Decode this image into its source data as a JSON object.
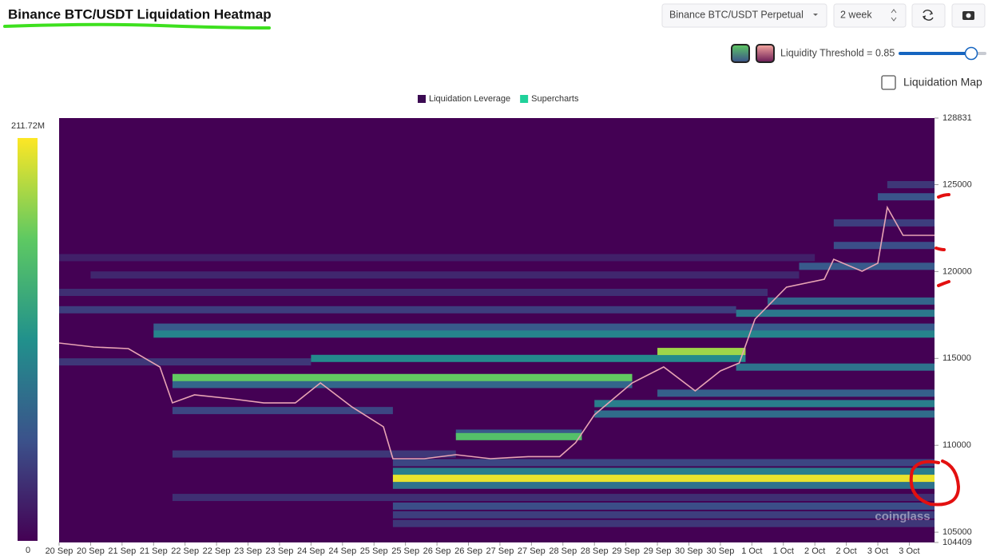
{
  "header": {
    "title": "Binance BTC/USDT Liquidation Heatmap"
  },
  "controls": {
    "pair": "Binance BTC/USDT Perpetual",
    "range": "2 week",
    "threshold_label": "Liquidity Threshold = 0.85",
    "map_toggle": "Liquidation Map"
  },
  "chart_data": {
    "type": "heatmap",
    "legend": [
      {
        "name": "Liquidation Leverage",
        "color": "#3b0a52"
      },
      {
        "name": "Supercharts",
        "color": "#1fd19a"
      }
    ],
    "colorscale": [
      "#440154",
      "#3b528b",
      "#21918c",
      "#5ec962",
      "#fde725"
    ],
    "colorbar": {
      "max": {
        "value": 211720000,
        "label": "211.72M"
      },
      "min": 0
    },
    "watermark": "coinglass",
    "ylim": [
      104409,
      128831
    ],
    "yticks": [
      128831,
      125000,
      120000,
      115000,
      110000,
      105000,
      104409
    ],
    "xlim": [
      0,
      27.8
    ],
    "xticks": [
      {
        "value": 0,
        "label": "20 Sep"
      },
      {
        "value": 1,
        "label": "20 Sep"
      },
      {
        "value": 2,
        "label": "21 Sep"
      },
      {
        "value": 3,
        "label": "21 Sep"
      },
      {
        "value": 4,
        "label": "22 Sep"
      },
      {
        "value": 5,
        "label": "22 Sep"
      },
      {
        "value": 6,
        "label": "23 Sep"
      },
      {
        "value": 7,
        "label": "23 Sep"
      },
      {
        "value": 8,
        "label": "24 Sep"
      },
      {
        "value": 9,
        "label": "24 Sep"
      },
      {
        "value": 10,
        "label": "25 Sep"
      },
      {
        "value": 11,
        "label": "25 Sep"
      },
      {
        "value": 12,
        "label": "26 Sep"
      },
      {
        "value": 13,
        "label": "26 Sep"
      },
      {
        "value": 14,
        "label": "27 Sep"
      },
      {
        "value": 15,
        "label": "27 Sep"
      },
      {
        "value": 16,
        "label": "28 Sep"
      },
      {
        "value": 17,
        "label": "28 Sep"
      },
      {
        "value": 18,
        "label": "29 Sep"
      },
      {
        "value": 19,
        "label": "29 Sep"
      },
      {
        "value": 20,
        "label": "30 Sep"
      },
      {
        "value": 21,
        "label": "30 Sep"
      },
      {
        "value": 22,
        "label": "1 Oct"
      },
      {
        "value": 23,
        "label": "1 Oct"
      },
      {
        "value": 24,
        "label": "2 Oct"
      },
      {
        "value": 25,
        "label": "2 Oct"
      },
      {
        "value": 26,
        "label": "3 Oct"
      },
      {
        "value": 27,
        "label": "3 Oct"
      }
    ],
    "bands": [
      {
        "y": 120800,
        "x0": 0,
        "x1": 24,
        "value": 20000000
      },
      {
        "y": 119800,
        "x0": 1,
        "x1": 23.5,
        "value": 25000000
      },
      {
        "y": 118800,
        "x0": 0,
        "x1": 22.5,
        "value": 30000000
      },
      {
        "y": 117800,
        "x0": 0,
        "x1": 21.5,
        "value": 40000000
      },
      {
        "y": 114800,
        "x0": 0,
        "x1": 8,
        "value": 35000000
      },
      {
        "y": 112000,
        "x0": 3.6,
        "x1": 10.6,
        "value": 45000000
      },
      {
        "y": 109500,
        "x0": 3.6,
        "x1": 12.6,
        "value": 35000000
      },
      {
        "y": 107000,
        "x0": 3.6,
        "x1": 27.8,
        "value": 30000000
      },
      {
        "y": 109000,
        "x0": 10.6,
        "x1": 27.8,
        "value": 45000000
      },
      {
        "y": 106500,
        "x0": 10.6,
        "x1": 27.8,
        "value": 50000000
      },
      {
        "y": 106000,
        "x0": 10.6,
        "x1": 27.8,
        "value": 40000000
      },
      {
        "y": 105500,
        "x0": 10.6,
        "x1": 27.8,
        "value": 35000000
      },
      {
        "y": 108500,
        "x0": 10.6,
        "x1": 27.8,
        "value": 90000000
      },
      {
        "y": 107700,
        "x0": 10.6,
        "x1": 27.8,
        "value": 80000000
      },
      {
        "y": 113500,
        "x0": 3.6,
        "x1": 18.2,
        "value": 70000000
      },
      {
        "y": 110700,
        "x0": 12.6,
        "x1": 16.6,
        "value": 60000000
      },
      {
        "y": 116800,
        "x0": 3,
        "x1": 27.8,
        "value": 60000000
      },
      {
        "y": 116400,
        "x0": 3,
        "x1": 27.8,
        "value": 95000000
      },
      {
        "y": 115000,
        "x0": 8,
        "x1": 21.8,
        "value": 100000000
      },
      {
        "y": 117600,
        "x0": 21.5,
        "x1": 27.8,
        "value": 85000000
      },
      {
        "y": 118300,
        "x0": 22.5,
        "x1": 27.8,
        "value": 70000000
      },
      {
        "y": 112400,
        "x0": 17,
        "x1": 27.8,
        "value": 90000000
      },
      {
        "y": 111800,
        "x0": 17,
        "x1": 27.8,
        "value": 75000000
      },
      {
        "y": 113000,
        "x0": 19,
        "x1": 27.8,
        "value": 65000000
      },
      {
        "y": 114500,
        "x0": 21.5,
        "x1": 27.8,
        "value": 80000000
      },
      {
        "y": 120300,
        "x0": 23.5,
        "x1": 27.8,
        "value": 60000000
      },
      {
        "y": 121500,
        "x0": 24.6,
        "x1": 27.8,
        "value": 50000000
      },
      {
        "y": 122800,
        "x0": 24.6,
        "x1": 27.8,
        "value": 40000000
      },
      {
        "y": 124300,
        "x0": 26,
        "x1": 27.8,
        "value": 55000000
      },
      {
        "y": 125000,
        "x0": 26.3,
        "x1": 27.8,
        "value": 35000000
      },
      {
        "y": 113900,
        "x0": 3.6,
        "x1": 18.2,
        "value": 160000000
      },
      {
        "y": 110500,
        "x0": 12.6,
        "x1": 16.6,
        "value": 150000000
      },
      {
        "y": 115400,
        "x0": 19,
        "x1": 21.8,
        "value": 180000000
      },
      {
        "y": 108100,
        "x0": 10.6,
        "x1": 27.8,
        "value": 205000000
      }
    ],
    "price": {
      "color": "#e8a4b4",
      "x": [
        0,
        1.1,
        2.2,
        3.2,
        3.6,
        4.3,
        5.5,
        6.5,
        7.5,
        8.3,
        9.3,
        10.3,
        10.6,
        11.6,
        12.6,
        13.7,
        14.9,
        15.9,
        16.4,
        17.0,
        18.2,
        19.2,
        20.2,
        21.0,
        21.6,
        22.1,
        23.1,
        24.3,
        24.6,
        25.5,
        26.0,
        26.3,
        26.8,
        27.8
      ],
      "values": [
        115885,
        115656,
        115564,
        114508,
        112443,
        112900,
        112670,
        112440,
        112440,
        113590,
        112210,
        111065,
        109230,
        109230,
        109460,
        109230,
        109350,
        109350,
        110147,
        111753,
        113590,
        114508,
        113130,
        114280,
        114738,
        117263,
        119100,
        119558,
        120706,
        120017,
        120476,
        123690,
        122083,
        122083
      ]
    }
  }
}
